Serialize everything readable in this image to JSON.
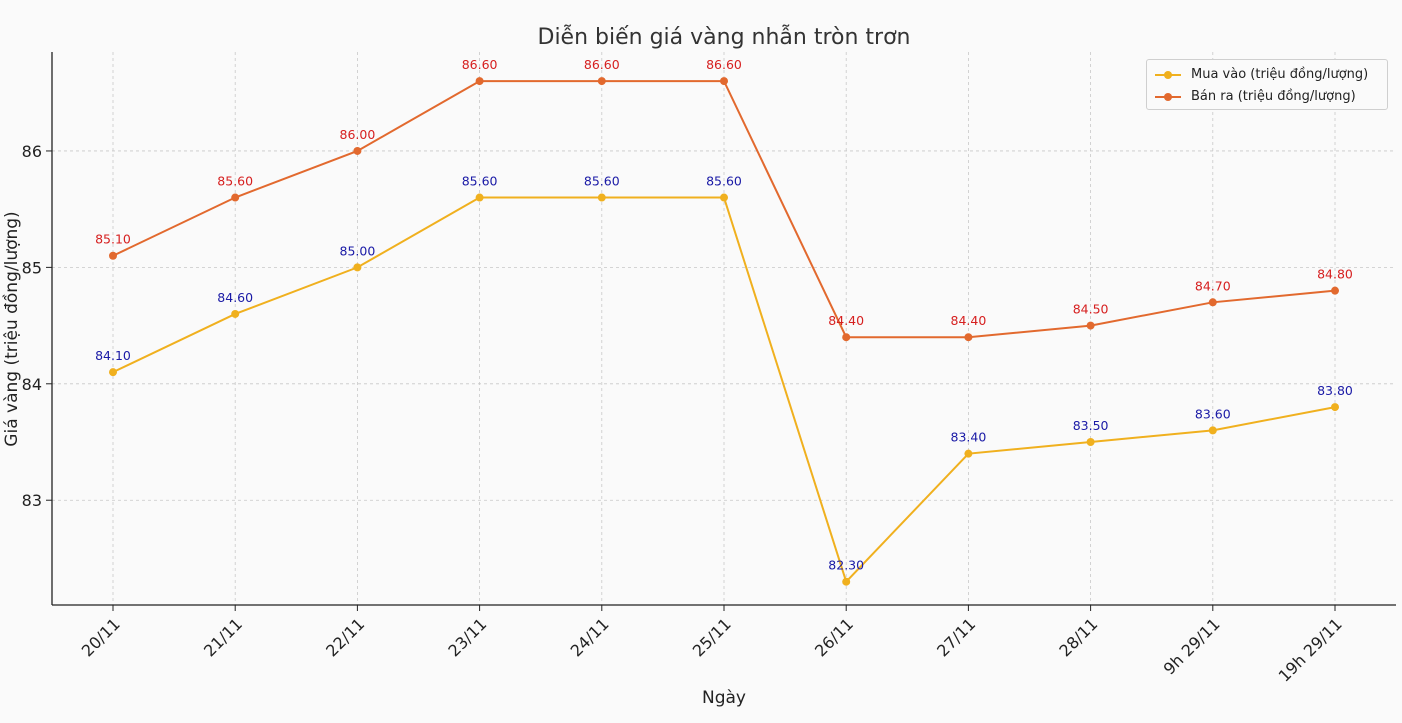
{
  "chart_data": {
    "type": "line",
    "title": "Diễn biến giá vàng nhẫn tròn trơn",
    "xlabel": "Ngày",
    "ylabel": "Giá vàng (triệu đồng/lượng)",
    "categories": [
      "20/11",
      "21/11",
      "22/11",
      "23/11",
      "24/11",
      "25/11",
      "26/11",
      "27/11",
      "28/11",
      "9h 29/11",
      "19h 29/11"
    ],
    "ylim": [
      82.1,
      86.85
    ],
    "yticks": [
      "83",
      "84",
      "85",
      "86"
    ],
    "grid": true,
    "legend_position": "top-right",
    "series": [
      {
        "name": "Mua vào (triệu đồng/lượng)",
        "color": "#f0b01e",
        "label_color": "#1a1aa6",
        "values": [
          84.1,
          84.6,
          85.0,
          85.6,
          85.6,
          85.6,
          82.3,
          83.4,
          83.5,
          83.6,
          83.8
        ],
        "labels": [
          "84.10",
          "84.60",
          "85.00",
          "85.60",
          "85.60",
          "85.60",
          "82.30",
          "83.40",
          "83.50",
          "83.60",
          "83.80"
        ]
      },
      {
        "name": "Bán ra (triệu đồng/lượng)",
        "color": "#e2692e",
        "label_color": "#d62020",
        "values": [
          85.1,
          85.6,
          86.0,
          86.6,
          86.6,
          86.6,
          84.4,
          84.4,
          84.5,
          84.7,
          84.8
        ],
        "labels": [
          "85.10",
          "85.60",
          "86.00",
          "86.60",
          "86.60",
          "86.60",
          "84.40",
          "84.40",
          "84.50",
          "84.70",
          "84.80"
        ]
      }
    ]
  }
}
